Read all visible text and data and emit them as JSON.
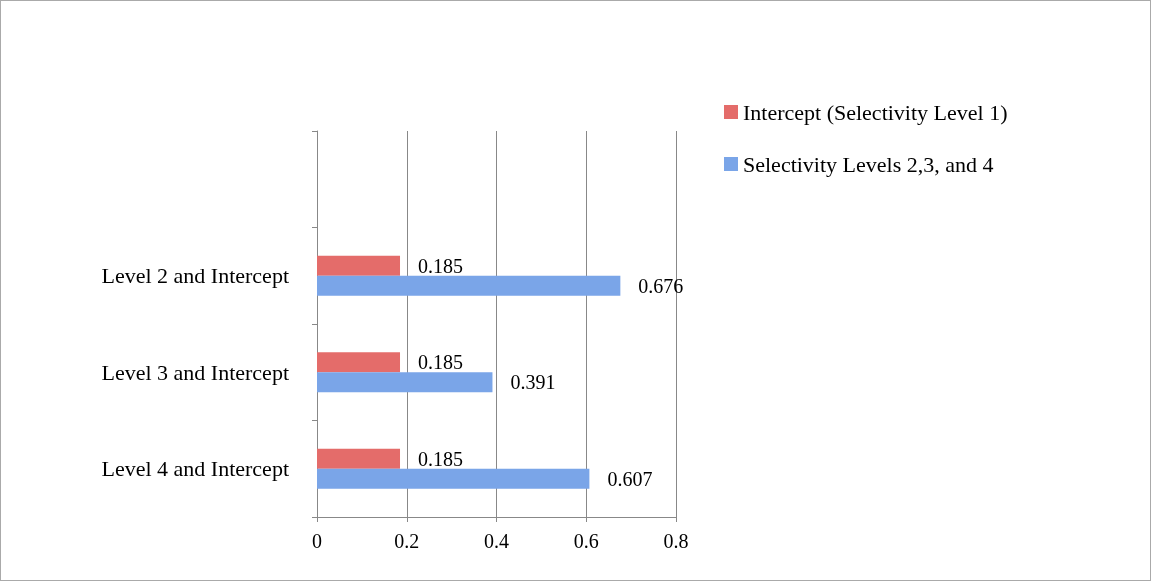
{
  "chart_data": {
    "type": "bar",
    "orientation": "horizontal",
    "categories": [
      null,
      "Level 2 and Intercept",
      "Level 3 and Intercept",
      "Level 4 and Intercept"
    ],
    "series": [
      {
        "name": "Intercept (Selectivity Level 1)",
        "color": "#e46c6a",
        "values": [
          null,
          0.185,
          0.185,
          0.185
        ]
      },
      {
        "name": "Selectivity Levels 2,3, and 4",
        "color": "#7aa5e8",
        "values": [
          null,
          0.676,
          0.391,
          0.607
        ]
      }
    ],
    "xlim": [
      0,
      0.8
    ],
    "xticks": [
      0,
      0.2,
      0.4,
      0.6,
      0.8
    ],
    "grid": "x",
    "legend": "right",
    "data_labels": true
  }
}
